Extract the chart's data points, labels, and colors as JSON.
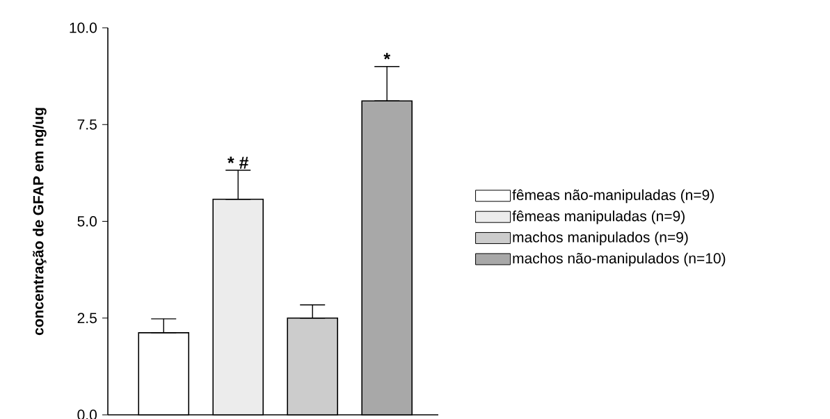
{
  "chart_data": {
    "type": "bar",
    "ylabel": "concentração de GFAP em ng/ug",
    "categories": [
      null,
      null,
      null,
      null
    ],
    "series": [
      {
        "name": "fêmeas não-manipuladas (n=9)",
        "color": "#ffffff",
        "values": [
          2.12,
          null,
          null,
          null
        ],
        "errors": [
          [
            2.12,
            2.48
          ],
          null,
          null,
          null
        ]
      },
      {
        "name": "fêmeas manipuladas (n=9)",
        "color": "#ececec",
        "values": [
          null,
          5.57,
          null,
          null
        ],
        "errors": [
          null,
          [
            5.57,
            6.32
          ],
          null,
          null
        ]
      },
      {
        "name": "machos manipulados (n=9)",
        "color": "#cccccc",
        "values": [
          null,
          null,
          2.5,
          null
        ],
        "errors": [
          null,
          null,
          [
            2.5,
            2.84
          ],
          null
        ]
      },
      {
        "name": "machos não-manipulados (n=10)",
        "color": "#a8a8a8",
        "values": [
          null,
          null,
          null,
          8.11
        ],
        "errors": [
          null,
          null,
          null,
          [
            8.11,
            9.0
          ]
        ]
      }
    ],
    "ylim": [
      0,
      10
    ],
    "yticks": [
      {
        "value": 0,
        "label": "0.0"
      },
      {
        "value": 2.5,
        "label": "2.5"
      },
      {
        "value": 5,
        "label": "5.0"
      },
      {
        "value": 7.5,
        "label": "7.5"
      },
      {
        "value": 10,
        "label": "10.0"
      }
    ],
    "annotations": [
      {
        "text": "* #",
        "y": 6.32
      },
      {
        "text": "*",
        "y": 9.0
      }
    ],
    "legend": "right",
    "grid": false
  }
}
